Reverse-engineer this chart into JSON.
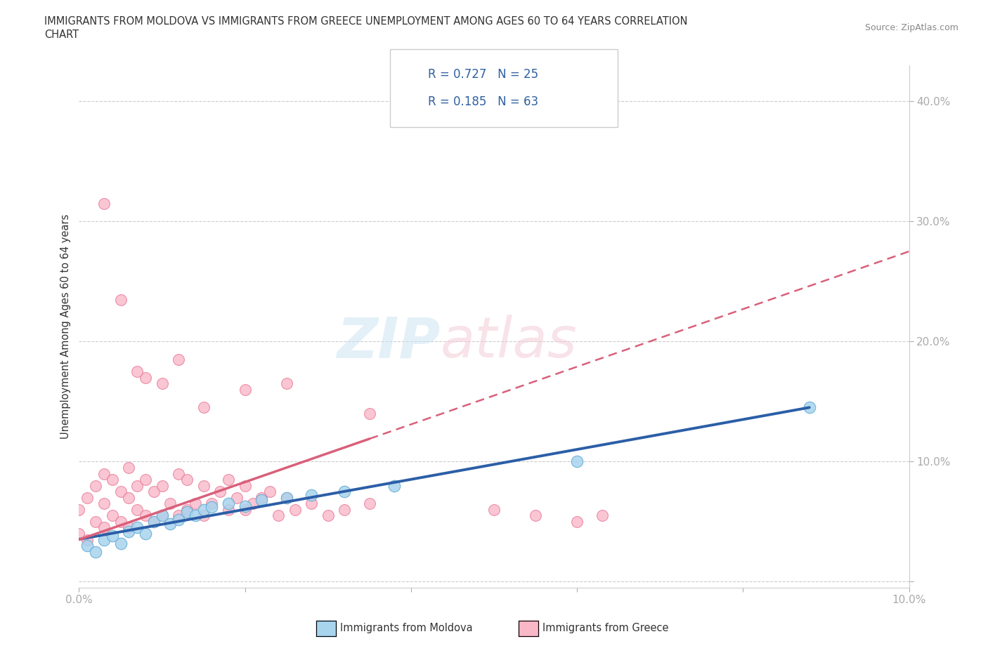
{
  "title_line1": "IMMIGRANTS FROM MOLDOVA VS IMMIGRANTS FROM GREECE UNEMPLOYMENT AMONG AGES 60 TO 64 YEARS CORRELATION",
  "title_line2": "CHART",
  "source_text": "Source: ZipAtlas.com",
  "ylabel": "Unemployment Among Ages 60 to 64 years",
  "xlim": [
    0.0,
    0.1
  ],
  "ylim": [
    -0.005,
    0.43
  ],
  "xticks": [
    0.0,
    0.02,
    0.04,
    0.06,
    0.08,
    0.1
  ],
  "xticklabels": [
    "0.0%",
    "",
    "",
    "",
    "",
    "10.0%"
  ],
  "yticks_right": [
    0.0,
    0.1,
    0.2,
    0.3,
    0.4
  ],
  "ytickslabels_right": [
    "",
    "10.0%",
    "20.0%",
    "30.0%",
    "40.0%"
  ],
  "moldova_color": "#A8D4EE",
  "moldova_edge": "#6AAED6",
  "greece_color": "#F9B8C8",
  "greece_edge": "#E87898",
  "line_blue": "#2B5EA7",
  "line_pink": "#D9607A",
  "R_moldova": 0.727,
  "N_moldova": 25,
  "R_greece": 0.185,
  "N_greece": 63,
  "moldova_x": [
    0.001,
    0.002,
    0.003,
    0.004,
    0.005,
    0.006,
    0.007,
    0.008,
    0.009,
    0.01,
    0.011,
    0.012,
    0.013,
    0.014,
    0.015,
    0.016,
    0.018,
    0.02,
    0.022,
    0.025,
    0.028,
    0.032,
    0.038,
    0.06,
    0.088
  ],
  "moldova_y": [
    0.03,
    0.025,
    0.035,
    0.038,
    0.032,
    0.042,
    0.045,
    0.04,
    0.05,
    0.055,
    0.048,
    0.052,
    0.058,
    0.055,
    0.06,
    0.062,
    0.065,
    0.063,
    0.068,
    0.07,
    0.072,
    0.075,
    0.08,
    0.1,
    0.145
  ],
  "greece_x": [
    0.0,
    0.0,
    0.001,
    0.001,
    0.002,
    0.002,
    0.003,
    0.003,
    0.003,
    0.004,
    0.004,
    0.005,
    0.005,
    0.006,
    0.006,
    0.006,
    0.007,
    0.007,
    0.008,
    0.008,
    0.009,
    0.009,
    0.01,
    0.01,
    0.011,
    0.012,
    0.012,
    0.013,
    0.013,
    0.014,
    0.015,
    0.015,
    0.016,
    0.017,
    0.018,
    0.018,
    0.019,
    0.02,
    0.02,
    0.021,
    0.022,
    0.023,
    0.024,
    0.025,
    0.026,
    0.028,
    0.03,
    0.032,
    0.035,
    0.008,
    0.01,
    0.012,
    0.015,
    0.003,
    0.005,
    0.007,
    0.02,
    0.025,
    0.035,
    0.05,
    0.055,
    0.06,
    0.063
  ],
  "greece_y": [
    0.04,
    0.06,
    0.035,
    0.07,
    0.05,
    0.08,
    0.045,
    0.065,
    0.09,
    0.055,
    0.085,
    0.05,
    0.075,
    0.045,
    0.07,
    0.095,
    0.06,
    0.08,
    0.055,
    0.085,
    0.05,
    0.075,
    0.055,
    0.08,
    0.065,
    0.055,
    0.09,
    0.06,
    0.085,
    0.065,
    0.055,
    0.08,
    0.065,
    0.075,
    0.06,
    0.085,
    0.07,
    0.06,
    0.08,
    0.065,
    0.07,
    0.075,
    0.055,
    0.07,
    0.06,
    0.065,
    0.055,
    0.06,
    0.065,
    0.17,
    0.165,
    0.185,
    0.145,
    0.315,
    0.235,
    0.175,
    0.16,
    0.165,
    0.14,
    0.06,
    0.055,
    0.05,
    0.055
  ],
  "trend_moldova_x0": 0.0,
  "trend_moldova_x1": 0.088,
  "trend_greece_solid_x0": 0.0,
  "trend_greece_solid_x1": 0.035,
  "trend_greece_dash_x0": 0.035,
  "trend_greece_dash_x1": 0.1
}
